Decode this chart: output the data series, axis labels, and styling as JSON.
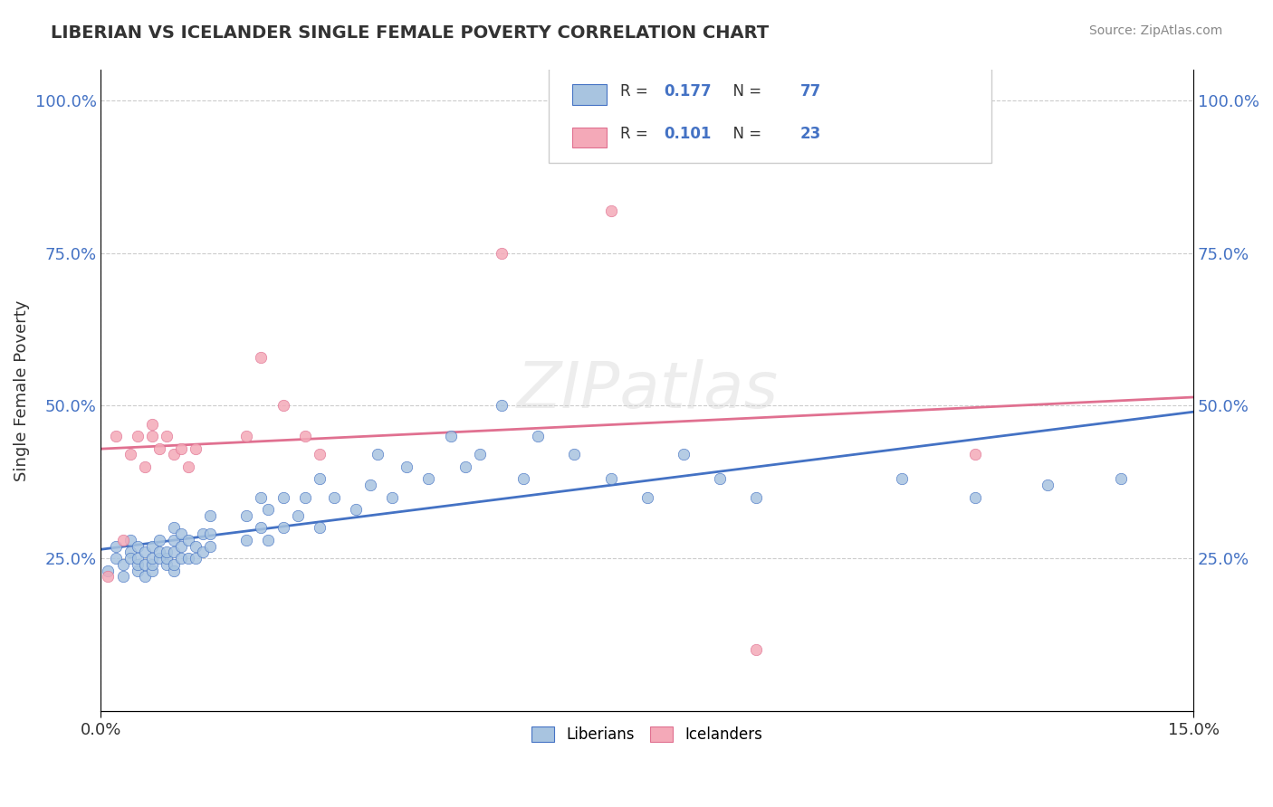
{
  "title": "LIBERIAN VS ICELANDER SINGLE FEMALE POVERTY CORRELATION CHART",
  "source": "Source: ZipAtlas.com",
  "ylabel_label": "Single Female Poverty",
  "xlim": [
    0.0,
    0.15
  ],
  "ylim": [
    0.0,
    1.05
  ],
  "xtick_labels": [
    "0.0%",
    "15.0%"
  ],
  "ytick_labels": [
    "25.0%",
    "50.0%",
    "75.0%",
    "100.0%"
  ],
  "ytick_vals": [
    0.25,
    0.5,
    0.75,
    1.0
  ],
  "xtick_vals": [
    0.0,
    0.15
  ],
  "liberian_R": "0.177",
  "liberian_N": "77",
  "icelander_R": "0.101",
  "icelander_N": "23",
  "liberian_color": "#a8c4e0",
  "icelander_color": "#f4a9b8",
  "liberian_line_color": "#4472c4",
  "icelander_line_color": "#e07090",
  "background_color": "#ffffff",
  "liberian_x": [
    0.001,
    0.002,
    0.002,
    0.003,
    0.003,
    0.004,
    0.004,
    0.004,
    0.005,
    0.005,
    0.005,
    0.005,
    0.006,
    0.006,
    0.006,
    0.007,
    0.007,
    0.007,
    0.007,
    0.008,
    0.008,
    0.008,
    0.009,
    0.009,
    0.009,
    0.01,
    0.01,
    0.01,
    0.01,
    0.01,
    0.011,
    0.011,
    0.011,
    0.012,
    0.012,
    0.013,
    0.013,
    0.014,
    0.014,
    0.015,
    0.015,
    0.015,
    0.02,
    0.02,
    0.022,
    0.022,
    0.023,
    0.023,
    0.025,
    0.025,
    0.027,
    0.028,
    0.03,
    0.03,
    0.032,
    0.035,
    0.037,
    0.038,
    0.04,
    0.042,
    0.045,
    0.048,
    0.05,
    0.052,
    0.055,
    0.058,
    0.06,
    0.065,
    0.07,
    0.075,
    0.08,
    0.085,
    0.09,
    0.11,
    0.12,
    0.13,
    0.14
  ],
  "liberian_y": [
    0.23,
    0.25,
    0.27,
    0.22,
    0.24,
    0.26,
    0.28,
    0.25,
    0.23,
    0.24,
    0.25,
    0.27,
    0.22,
    0.24,
    0.26,
    0.23,
    0.24,
    0.25,
    0.27,
    0.25,
    0.26,
    0.28,
    0.24,
    0.25,
    0.26,
    0.23,
    0.24,
    0.26,
    0.28,
    0.3,
    0.25,
    0.27,
    0.29,
    0.25,
    0.28,
    0.25,
    0.27,
    0.26,
    0.29,
    0.27,
    0.29,
    0.32,
    0.28,
    0.32,
    0.3,
    0.35,
    0.28,
    0.33,
    0.3,
    0.35,
    0.32,
    0.35,
    0.3,
    0.38,
    0.35,
    0.33,
    0.37,
    0.42,
    0.35,
    0.4,
    0.38,
    0.45,
    0.4,
    0.42,
    0.5,
    0.38,
    0.45,
    0.42,
    0.38,
    0.35,
    0.42,
    0.38,
    0.35,
    0.38,
    0.35,
    0.37,
    0.38
  ],
  "icelander_x": [
    0.001,
    0.002,
    0.003,
    0.004,
    0.005,
    0.006,
    0.007,
    0.007,
    0.008,
    0.009,
    0.01,
    0.011,
    0.012,
    0.013,
    0.02,
    0.022,
    0.025,
    0.028,
    0.03,
    0.055,
    0.07,
    0.09,
    0.12
  ],
  "icelander_y": [
    0.22,
    0.45,
    0.28,
    0.42,
    0.45,
    0.4,
    0.45,
    0.47,
    0.43,
    0.45,
    0.42,
    0.43,
    0.4,
    0.43,
    0.45,
    0.58,
    0.5,
    0.45,
    0.42,
    0.75,
    0.82,
    0.1,
    0.42
  ]
}
